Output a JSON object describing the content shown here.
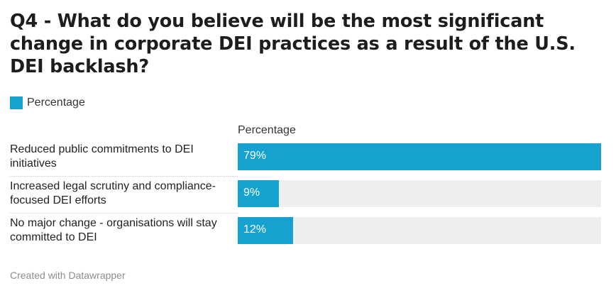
{
  "title": "Q4 - What do you believe will be the most significant change in corporate DEI practices as a result of the U.S. DEI backlash?",
  "legend": [
    {
      "label": "Percentage",
      "color": "#15a2cf"
    }
  ],
  "column_header": "Percentage",
  "footer": "Created with Datawrapper",
  "colors": {
    "bar": "#15a2cf",
    "track": "#eeeeee"
  },
  "chart_data": {
    "type": "bar",
    "orientation": "horizontal",
    "title": "Q4 - What do you believe will be the most significant change in corporate DEI practices as a result of the U.S. DEI backlash?",
    "categories": [
      "Reduced public commitments to DEI initiatives",
      "Increased legal scrutiny and compliance-focused DEI efforts",
      "No major change - organisations will stay committed to DEI"
    ],
    "series": [
      {
        "name": "Percentage",
        "values": [
          79,
          9,
          12
        ],
        "labels": [
          "79%",
          "9%",
          "12%"
        ]
      }
    ],
    "xlim": [
      0,
      79
    ],
    "unit": "%",
    "legend_position": "top-left",
    "grid": false
  }
}
